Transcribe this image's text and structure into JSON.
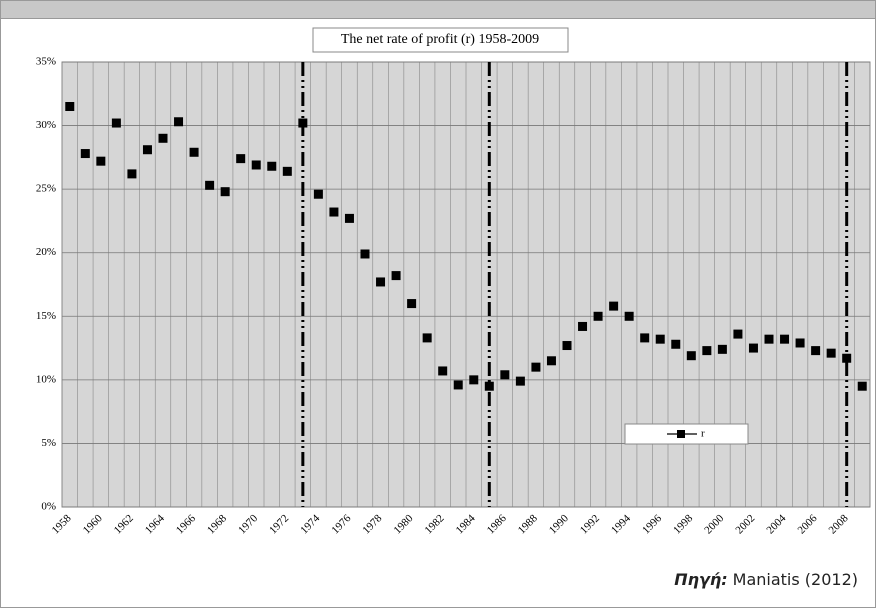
{
  "chart_data": {
    "type": "line",
    "title": "The net rate of profit (r) 1958-2009",
    "categories": [
      "1958",
      null,
      "1960",
      null,
      "1962",
      null,
      "1964",
      null,
      "1966",
      null,
      "1968",
      null,
      "1970",
      null,
      "1972",
      null,
      "1974",
      null,
      "1976",
      null,
      "1978",
      null,
      "1980",
      null,
      "1982",
      null,
      "1984",
      null,
      "1986",
      null,
      "1988",
      null,
      "1990",
      null,
      "1992",
      null,
      "1994",
      null,
      "1996",
      null,
      "1998",
      null,
      "2000",
      null,
      "2002",
      null,
      "2004",
      null,
      "2006",
      null,
      "2008",
      null
    ],
    "series": [
      {
        "name": "r",
        "color": "#000000",
        "values": [
          31.5,
          27.8,
          27.2,
          30.2,
          26.2,
          28.1,
          29.0,
          30.3,
          27.9,
          25.3,
          24.8,
          27.4,
          26.9,
          26.8,
          26.4,
          30.2,
          24.6,
          23.2,
          22.7,
          19.9,
          17.7,
          18.2,
          16.0,
          13.3,
          10.7,
          9.6,
          10.0,
          9.5,
          10.4,
          9.9,
          11.0,
          11.5,
          12.7,
          14.2,
          15.0,
          15.8,
          15.0,
          13.3,
          13.2,
          12.8,
          11.9,
          12.3,
          12.4,
          13.6,
          12.5,
          13.2,
          13.2,
          12.9,
          12.3,
          12.1,
          11.7,
          9.5
        ]
      }
    ],
    "ylim": [
      0,
      35
    ],
    "yticks": [
      {
        "value": 0,
        "label": "0%"
      },
      {
        "value": 5,
        "label": "5%"
      },
      {
        "value": 10,
        "label": "10%"
      },
      {
        "value": 15,
        "label": "15%"
      },
      {
        "value": 20,
        "label": "20%"
      },
      {
        "value": 25,
        "label": "25%"
      },
      {
        "value": 30,
        "label": "30%"
      },
      {
        "value": 35,
        "label": "35%"
      }
    ],
    "vline_indices": [
      15,
      27,
      50
    ],
    "grid": true,
    "legend": "lower right",
    "source_label": "Πηγή:",
    "source": "Maniatis (2012)"
  }
}
